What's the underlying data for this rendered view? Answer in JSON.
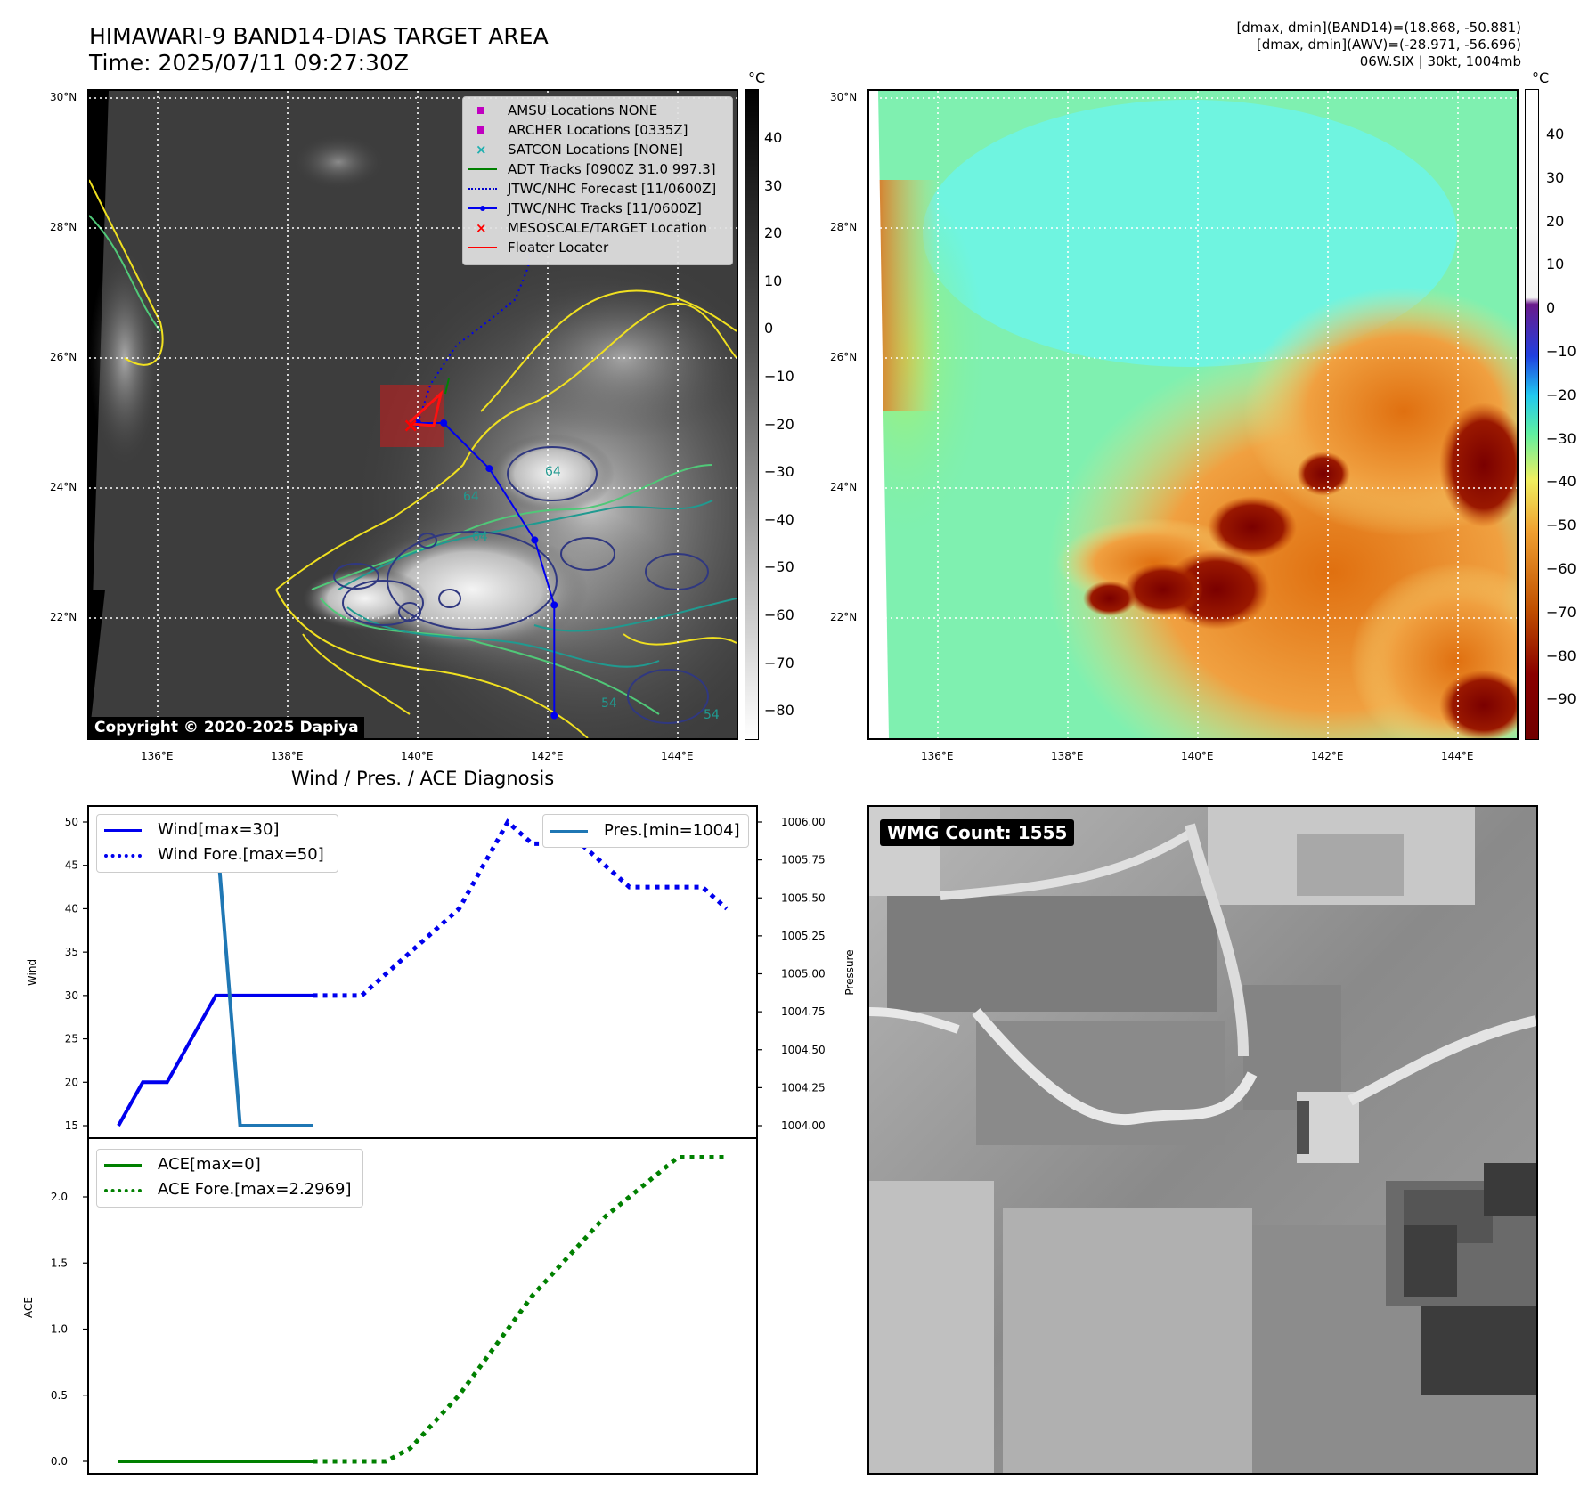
{
  "header": {
    "title_line1": "HIMAWARI-9 BAND14-DIAS TARGET AREA",
    "title_line2": "Time: 2025/07/11 09:27:30Z",
    "info_line1": "[dmax, dmin](BAND14)=(18.868, -50.881)",
    "info_line2": "[dmax, dmin](AWV)=(-28.971, -56.696)",
    "info_line3": "06W.SIX | 30kt, 1004mb"
  },
  "maps": {
    "lat_labels": [
      "30°N",
      "28°N",
      "26°N",
      "24°N",
      "22°N"
    ],
    "lon_labels": [
      "136°E",
      "138°E",
      "140°E",
      "142°E",
      "144°E"
    ],
    "copyright": "Copyright © 2020-2025 Dapiya",
    "contour_labels": [
      "64",
      "64",
      "64",
      "54",
      "54"
    ],
    "colorbar_unit": "°C",
    "ir_colorbar_ticks": [
      "40",
      "30",
      "20",
      "10",
      "0",
      "−10",
      "−20",
      "−30",
      "−40",
      "−50",
      "−60",
      "−70",
      "−80"
    ],
    "awv_colorbar_ticks": [
      "40",
      "30",
      "20",
      "10",
      "0",
      "−10",
      "−20",
      "−30",
      "−40",
      "−50",
      "−60",
      "−70",
      "−80",
      "−90"
    ],
    "legend": [
      {
        "label": "AMSU Locations NONE",
        "marker": "square",
        "color": "#c000c0"
      },
      {
        "label": "ARCHER Locations [0335Z]",
        "marker": "square",
        "color": "#c000c0"
      },
      {
        "label": "SATCON Locations [NONE]",
        "marker": "x",
        "color": "#20b0b0"
      },
      {
        "label": "ADT Tracks [0900Z 31.0 997.3]",
        "marker": "line",
        "color": "#008000"
      },
      {
        "label": "JTWC/NHC Forecast [11/0600Z]",
        "marker": "dotted",
        "color": "#0000cc"
      },
      {
        "label": "JTWC/NHC Tracks [11/0600Z]",
        "marker": "line-dot",
        "color": "#0000ee"
      },
      {
        "label": "MESOSCALE/TARGET Location",
        "marker": "x",
        "color": "#ff0000"
      },
      {
        "label": "Floater Locater",
        "marker": "line",
        "color": "#ff0000"
      }
    ],
    "track_points": [
      [
        140.0,
        25.0
      ],
      [
        140.4,
        25.0
      ],
      [
        141.1,
        24.3
      ],
      [
        141.8,
        23.2
      ],
      [
        142.1,
        22.2
      ],
      [
        142.1,
        20.5
      ]
    ],
    "forecast_points": [
      [
        140.0,
        25.0
      ],
      [
        140.2,
        25.6
      ],
      [
        140.6,
        26.2
      ],
      [
        141.0,
        26.5
      ],
      [
        141.5,
        26.9
      ],
      [
        141.7,
        27.4
      ],
      [
        141.8,
        28.2
      ]
    ]
  },
  "diagnosis": {
    "title": "Wind / Pres. / ACE Diagnosis",
    "wind_ylabel": "Wind",
    "pres_ylabel": "Pressure",
    "ace_ylabel": "ACE",
    "wind_ticks": [
      "50",
      "45",
      "40",
      "35",
      "30",
      "25",
      "20",
      "15"
    ],
    "pres_ticks": [
      "1006.00",
      "1005.75",
      "1005.50",
      "1005.25",
      "1005.00",
      "1004.75",
      "1004.50",
      "1004.25",
      "1004.00"
    ],
    "ace_ticks": [
      "2.0",
      "1.5",
      "1.0",
      "0.5",
      "0.0"
    ],
    "legend_wind": "Wind[max=30]",
    "legend_wind_fore": "Wind Fore.[max=50]",
    "legend_pres": "Pres.[min=1004]",
    "legend_ace": "ACE[max=0]",
    "legend_ace_fore": "ACE Fore.[max=2.2969]",
    "wmg_count": "WMG Count: 1555"
  },
  "colors": {
    "wind": "#0000ee",
    "pressure": "#1f77b4",
    "ace": "#008000",
    "contour_yellow": "#f0e020",
    "contour_green": "#50c878",
    "contour_teal": "#209a90",
    "contour_navy": "#303880"
  },
  "chart_data": [
    {
      "type": "line",
      "title": "Wind / Pres. / ACE Diagnosis",
      "ylabel": "Wind",
      "ylim": [
        14,
        51
      ],
      "series": [
        {
          "name": "Wind[max=30]",
          "x": [
            0,
            1,
            2,
            3,
            4,
            5,
            6,
            7,
            8
          ],
          "values": [
            15,
            20,
            20,
            25,
            30,
            30,
            30,
            30,
            30
          ]
        },
        {
          "name": "Wind Fore.[max=50]",
          "x": [
            8,
            9,
            10,
            11,
            12,
            13,
            14,
            15,
            16,
            17,
            18,
            19,
            20,
            21,
            22,
            23,
            24,
            25
          ],
          "values": [
            30,
            30,
            30,
            32.5,
            35,
            37.5,
            40,
            45,
            50,
            47.5,
            47.5,
            47.5,
            45,
            42.5,
            42.5,
            42.5,
            42.5,
            40
          ]
        }
      ]
    },
    {
      "type": "line",
      "ylabel": "Pressure",
      "ylim": [
        1003.95,
        1006.05
      ],
      "series": [
        {
          "name": "Pres.[min=1004]",
          "x": [
            0,
            1,
            2,
            3,
            4,
            5,
            6,
            7,
            8
          ],
          "values": [
            1006,
            1006,
            1006,
            1006,
            1006,
            1004,
            1004,
            1004,
            1004
          ]
        }
      ]
    },
    {
      "type": "line",
      "ylabel": "ACE",
      "ylim": [
        -0.05,
        2.4
      ],
      "series": [
        {
          "name": "ACE[max=0]",
          "x": [
            0,
            8
          ],
          "values": [
            0,
            0
          ]
        },
        {
          "name": "ACE Fore.[max=2.2969]",
          "x": [
            8,
            9,
            10,
            11,
            12,
            13,
            14,
            15,
            16,
            17,
            18,
            19,
            20,
            21,
            22,
            23,
            24,
            25
          ],
          "values": [
            0,
            0,
            0,
            0,
            0.1,
            0.3,
            0.5,
            0.75,
            1.0,
            1.25,
            1.45,
            1.65,
            1.85,
            2.0,
            2.15,
            2.3,
            2.3,
            2.3
          ]
        }
      ]
    }
  ]
}
